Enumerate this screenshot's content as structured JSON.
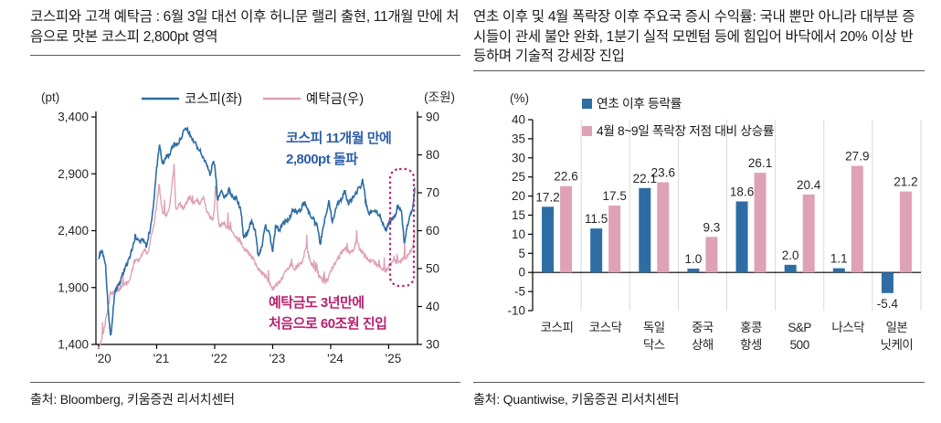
{
  "colors": {
    "blue": "#2e6da4",
    "pink": "#dfa1b5",
    "magenta": "#b81f6f",
    "ann_blue": "#2d5fa8",
    "axis_text": "#262626",
    "grid": "#d9d9d9",
    "axis_line": "#000000"
  },
  "left_panel": {
    "title": "코스피와 고객 예탁금 : 6월 3일 대선 이후 허니문 랠리 출현, 11개월 만에 처음으로 맛본 코스피 2,800pt 영역",
    "source": "출처: Bloomberg, 키움증권 리서치센터"
  },
  "right_panel": {
    "title": "연초 이후 및 4월 폭락장 이후 주요국 증시 수익률: 국내 뿐만 아니라 대부분 증시들이 관세 불안 완화, 1분기 실적 모멘텀 등에 힘입어 바닥에서 20% 이상 반등하며 기술적 강세장 진입",
    "source": "출처: Quantiwise, 키움증권 리서치센터"
  },
  "chart_data": [
    {
      "type": "line",
      "title": "코스피와 고객 예탁금",
      "unit_left": "(pt)",
      "unit_right": "(조원)",
      "legend": [
        "코스피(좌)",
        "예탁금(우)"
      ],
      "x_ticks": [
        "'20",
        "'21",
        "'22",
        "'23",
        "'24",
        "'25"
      ],
      "ylim_left": [
        1400,
        3400
      ],
      "yticks_left": [
        "1,400",
        "1,900",
        "2,400",
        "2,900",
        "3,400"
      ],
      "ylim_right": [
        30,
        90
      ],
      "ytick_step_right": 10,
      "annotations": [
        {
          "lines": [
            "코스피 11개월 만에",
            "2,800pt 돌파"
          ],
          "color": "ann_blue"
        },
        {
          "lines": [
            "예탁금도 3년만에",
            "처음으로 60조원 진입"
          ],
          "color": "magenta"
        }
      ],
      "series": [
        {
          "name": "코스피(좌)",
          "axis": "left",
          "points": [
            [
              2020.0,
              2150
            ],
            [
              2020.05,
              2230
            ],
            [
              2020.12,
              2085
            ],
            [
              2020.16,
              1750
            ],
            [
              2020.205,
              1457
            ],
            [
              2020.28,
              1860
            ],
            [
              2020.35,
              1920
            ],
            [
              2020.42,
              2030
            ],
            [
              2020.5,
              2120
            ],
            [
              2020.58,
              2240
            ],
            [
              2020.63,
              2350
            ],
            [
              2020.7,
              2300
            ],
            [
              2020.78,
              2330
            ],
            [
              2020.82,
              2270
            ],
            [
              2020.9,
              2440
            ],
            [
              2020.96,
              2700
            ],
            [
              2021.0,
              2950
            ],
            [
              2021.05,
              3150
            ],
            [
              2021.1,
              2990
            ],
            [
              2021.16,
              3050
            ],
            [
              2021.22,
              3070
            ],
            [
              2021.3,
              3160
            ],
            [
              2021.38,
              3180
            ],
            [
              2021.45,
              3250
            ],
            [
              2021.5,
              3300
            ],
            [
              2021.55,
              3270
            ],
            [
              2021.62,
              3200
            ],
            [
              2021.7,
              3140
            ],
            [
              2021.78,
              3070
            ],
            [
              2021.85,
              2990
            ],
            [
              2021.92,
              2900
            ],
            [
              2021.97,
              3000
            ],
            [
              2022.0,
              2990
            ],
            [
              2022.05,
              2670
            ],
            [
              2022.1,
              2750
            ],
            [
              2022.18,
              2700
            ],
            [
              2022.25,
              2760
            ],
            [
              2022.3,
              2700
            ],
            [
              2022.38,
              2680
            ],
            [
              2022.45,
              2590
            ],
            [
              2022.5,
              2330
            ],
            [
              2022.58,
              2400
            ],
            [
              2022.63,
              2480
            ],
            [
              2022.7,
              2410
            ],
            [
              2022.75,
              2180
            ],
            [
              2022.82,
              2270
            ],
            [
              2022.87,
              2450
            ],
            [
              2022.95,
              2360
            ],
            [
              2023.0,
              2230
            ],
            [
              2023.05,
              2440
            ],
            [
              2023.12,
              2410
            ],
            [
              2023.2,
              2470
            ],
            [
              2023.28,
              2500
            ],
            [
              2023.35,
              2580
            ],
            [
              2023.42,
              2560
            ],
            [
              2023.5,
              2600
            ],
            [
              2023.55,
              2660
            ],
            [
              2023.62,
              2560
            ],
            [
              2023.7,
              2500
            ],
            [
              2023.78,
              2420
            ],
            [
              2023.82,
              2280
            ],
            [
              2023.9,
              2500
            ],
            [
              2023.97,
              2660
            ],
            [
              2024.03,
              2480
            ],
            [
              2024.1,
              2620
            ],
            [
              2024.18,
              2680
            ],
            [
              2024.25,
              2750
            ],
            [
              2024.3,
              2630
            ],
            [
              2024.38,
              2690
            ],
            [
              2024.45,
              2740
            ],
            [
              2024.52,
              2800
            ],
            [
              2024.55,
              2860
            ],
            [
              2024.6,
              2670
            ],
            [
              2024.65,
              2540
            ],
            [
              2024.72,
              2590
            ],
            [
              2024.78,
              2570
            ],
            [
              2024.85,
              2540
            ],
            [
              2024.9,
              2450
            ],
            [
              2024.96,
              2400
            ],
            [
              2025.02,
              2480
            ],
            [
              2025.1,
              2530
            ],
            [
              2025.17,
              2620
            ],
            [
              2025.22,
              2560
            ],
            [
              2025.27,
              2290
            ],
            [
              2025.32,
              2450
            ],
            [
              2025.37,
              2530
            ],
            [
              2025.42,
              2620
            ],
            [
              2025.45,
              2780
            ]
          ]
        },
        {
          "name": "예탁금(우)",
          "axis": "right",
          "points": [
            [
              2020.0,
              29
            ],
            [
              2020.05,
              31
            ],
            [
              2020.12,
              36
            ],
            [
              2020.2,
              43
            ],
            [
              2020.28,
              44
            ],
            [
              2020.35,
              44.5
            ],
            [
              2020.42,
              46
            ],
            [
              2020.5,
              46
            ],
            [
              2020.55,
              48
            ],
            [
              2020.6,
              51
            ],
            [
              2020.65,
              53
            ],
            [
              2020.7,
              52
            ],
            [
              2020.78,
              55
            ],
            [
              2020.85,
              54
            ],
            [
              2020.9,
              58
            ],
            [
              2020.96,
              62
            ],
            [
              2021.0,
              67
            ],
            [
              2021.04,
              72
            ],
            [
              2021.1,
              65
            ],
            [
              2021.16,
              64
            ],
            [
              2021.22,
              66
            ],
            [
              2021.3,
              77
            ],
            [
              2021.33,
              66
            ],
            [
              2021.4,
              67
            ],
            [
              2021.45,
              66
            ],
            [
              2021.5,
              67
            ],
            [
              2021.58,
              69
            ],
            [
              2021.62,
              67
            ],
            [
              2021.7,
              68
            ],
            [
              2021.75,
              67
            ],
            [
              2021.8,
              69
            ],
            [
              2021.85,
              66
            ],
            [
              2021.9,
              64
            ],
            [
              2021.97,
              63
            ],
            [
              2022.02,
              70
            ],
            [
              2022.08,
              61
            ],
            [
              2022.15,
              62
            ],
            [
              2022.22,
              61
            ],
            [
              2022.3,
              60
            ],
            [
              2022.38,
              58
            ],
            [
              2022.45,
              57
            ],
            [
              2022.52,
              55
            ],
            [
              2022.6,
              54
            ],
            [
              2022.68,
              52
            ],
            [
              2022.75,
              50
            ],
            [
              2022.82,
              49
            ],
            [
              2022.9,
              47.5
            ],
            [
              2023.0,
              44.5
            ],
            [
              2023.08,
              46
            ],
            [
              2023.15,
              47
            ],
            [
              2023.22,
              49
            ],
            [
              2023.3,
              51
            ],
            [
              2023.38,
              50
            ],
            [
              2023.45,
              51
            ],
            [
              2023.52,
              52
            ],
            [
              2023.58,
              56
            ],
            [
              2023.65,
              52
            ],
            [
              2023.72,
              50
            ],
            [
              2023.8,
              48
            ],
            [
              2023.88,
              46.5
            ],
            [
              2023.95,
              47
            ],
            [
              2024.02,
              50
            ],
            [
              2024.1,
              52
            ],
            [
              2024.18,
              54
            ],
            [
              2024.25,
              55.5
            ],
            [
              2024.32,
              54
            ],
            [
              2024.4,
              55
            ],
            [
              2024.45,
              58
            ],
            [
              2024.5,
              55
            ],
            [
              2024.58,
              53.5
            ],
            [
              2024.65,
              52.5
            ],
            [
              2024.72,
              52
            ],
            [
              2024.8,
              51
            ],
            [
              2024.88,
              50
            ],
            [
              2024.95,
              49.5
            ],
            [
              2025.02,
              51
            ],
            [
              2025.1,
              52
            ],
            [
              2025.17,
              51.5
            ],
            [
              2025.25,
              52.5
            ],
            [
              2025.3,
              53
            ],
            [
              2025.37,
              54.5
            ],
            [
              2025.42,
              56
            ],
            [
              2025.45,
              60
            ]
          ]
        }
      ]
    },
    {
      "type": "bar",
      "title": "연초 이후 및 4월 폭락장 이후 주요국 증시 수익률",
      "unit": "(%)",
      "legend": [
        "연초 이후 등락률",
        "4월 8~9일 폭락장 저점 대비 상승률"
      ],
      "categories": [
        "코스피",
        "코스닥",
        "독일\n닥스",
        "중국\n상해",
        "홍콩\n항셍",
        "S&P\n500",
        "나스닥",
        "일본\n닛케이"
      ],
      "series": [
        {
          "name": "연초 이후 등락률",
          "color": "blue",
          "values": [
            17.2,
            11.5,
            22.1,
            1.0,
            18.6,
            2.0,
            1.1,
            -5.4
          ]
        },
        {
          "name": "4월 8~9일 폭락장 저점 대비 상승률",
          "color": "pink",
          "values": [
            22.6,
            17.5,
            23.6,
            9.3,
            26.1,
            20.4,
            27.9,
            21.2
          ]
        }
      ],
      "ylim": [
        -10,
        40
      ],
      "ytick_step": 5,
      "grid": "vertical-separators",
      "legend_position": "top"
    }
  ]
}
